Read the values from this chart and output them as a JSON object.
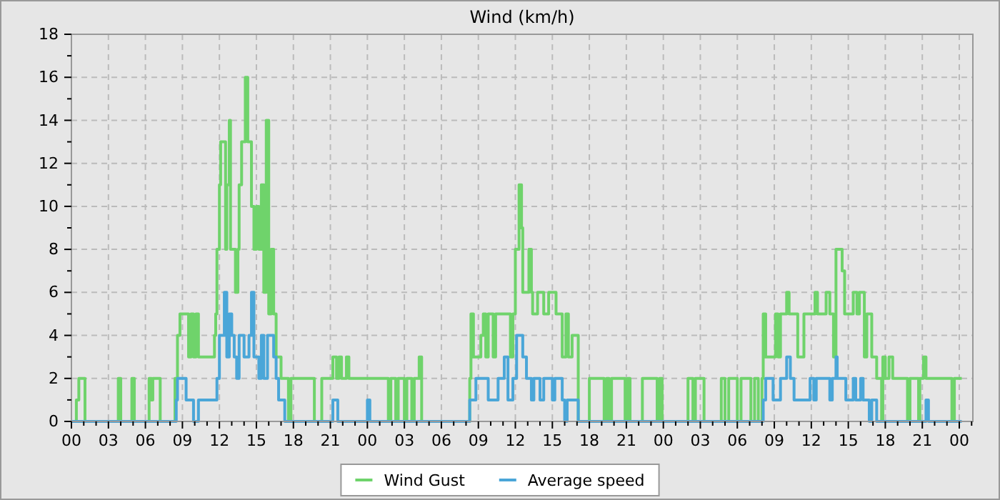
{
  "chart_data": {
    "type": "step",
    "title": "Wind (km/h)",
    "xlim": [
      0,
      73.1
    ],
    "ylim": [
      0,
      18
    ],
    "xticks": [
      {
        "value": 0,
        "label": "00"
      },
      {
        "value": 1,
        "label": null
      },
      {
        "value": 2,
        "label": null
      },
      {
        "value": 3,
        "label": "03"
      },
      {
        "value": 4,
        "label": null
      },
      {
        "value": 5,
        "label": null
      },
      {
        "value": 6,
        "label": "06"
      },
      {
        "value": 7,
        "label": null
      },
      {
        "value": 8,
        "label": null
      },
      {
        "value": 9,
        "label": "09"
      },
      {
        "value": 10,
        "label": null
      },
      {
        "value": 11,
        "label": null
      },
      {
        "value": 12,
        "label": "12"
      },
      {
        "value": 13,
        "label": null
      },
      {
        "value": 14,
        "label": null
      },
      {
        "value": 15,
        "label": "15"
      },
      {
        "value": 16,
        "label": null
      },
      {
        "value": 17,
        "label": null
      },
      {
        "value": 18,
        "label": "18"
      },
      {
        "value": 19,
        "label": null
      },
      {
        "value": 20,
        "label": null
      },
      {
        "value": 21,
        "label": "21"
      },
      {
        "value": 22,
        "label": null
      },
      {
        "value": 23,
        "label": null
      },
      {
        "value": 24,
        "label": "00"
      },
      {
        "value": 25,
        "label": null
      },
      {
        "value": 26,
        "label": null
      },
      {
        "value": 27,
        "label": "03"
      },
      {
        "value": 28,
        "label": null
      },
      {
        "value": 29,
        "label": null
      },
      {
        "value": 30,
        "label": "06"
      },
      {
        "value": 31,
        "label": null
      },
      {
        "value": 32,
        "label": null
      },
      {
        "value": 33,
        "label": "09"
      },
      {
        "value": 34,
        "label": null
      },
      {
        "value": 35,
        "label": null
      },
      {
        "value": 36,
        "label": "12"
      },
      {
        "value": 37,
        "label": null
      },
      {
        "value": 38,
        "label": null
      },
      {
        "value": 39,
        "label": "15"
      },
      {
        "value": 40,
        "label": null
      },
      {
        "value": 41,
        "label": null
      },
      {
        "value": 42,
        "label": "18"
      },
      {
        "value": 43,
        "label": null
      },
      {
        "value": 44,
        "label": null
      },
      {
        "value": 45,
        "label": "21"
      },
      {
        "value": 46,
        "label": null
      },
      {
        "value": 47,
        "label": null
      },
      {
        "value": 48,
        "label": "00"
      },
      {
        "value": 49,
        "label": null
      },
      {
        "value": 50,
        "label": null
      },
      {
        "value": 51,
        "label": "03"
      },
      {
        "value": 52,
        "label": null
      },
      {
        "value": 53,
        "label": null
      },
      {
        "value": 54,
        "label": "06"
      },
      {
        "value": 55,
        "label": null
      },
      {
        "value": 56,
        "label": null
      },
      {
        "value": 57,
        "label": "09"
      },
      {
        "value": 58,
        "label": null
      },
      {
        "value": 59,
        "label": null
      },
      {
        "value": 60,
        "label": "12"
      },
      {
        "value": 61,
        "label": null
      },
      {
        "value": 62,
        "label": null
      },
      {
        "value": 63,
        "label": "15"
      },
      {
        "value": 64,
        "label": null
      },
      {
        "value": 65,
        "label": null
      },
      {
        "value": 66,
        "label": "18"
      },
      {
        "value": 67,
        "label": null
      },
      {
        "value": 68,
        "label": null
      },
      {
        "value": 69,
        "label": "21"
      },
      {
        "value": 70,
        "label": null
      },
      {
        "value": 71,
        "label": null
      },
      {
        "value": 72,
        "label": "00"
      },
      {
        "value": 73,
        "label": null
      }
    ],
    "yticks": [
      0,
      {
        "value": 1,
        "label": null
      },
      2,
      {
        "value": 3,
        "label": null
      },
      4,
      {
        "value": 5,
        "label": null
      },
      6,
      {
        "value": 7,
        "label": null
      },
      8,
      {
        "value": 9,
        "label": null
      },
      10,
      {
        "value": 11,
        "label": null
      },
      12,
      {
        "value": 13,
        "label": null
      },
      14,
      {
        "value": 15,
        "label": null
      },
      16,
      {
        "value": 17,
        "label": null
      },
      18
    ],
    "grid": true,
    "legend": "bottom",
    "series": [
      {
        "name": "Wind Gust",
        "color": "#6fd36b",
        "x": [
          0,
          0.4,
          0.6,
          1.1,
          3.8,
          4.0,
          4.9,
          5.1,
          6.3,
          6.5,
          6.6,
          7.2,
          8.4,
          8.6,
          8.8,
          9.5,
          9.7,
          9.9,
          10.1,
          10.3,
          11.6,
          11.7,
          11.8,
          12.0,
          12.1,
          12.5,
          12.6,
          12.8,
          12.9,
          13.3,
          13.5,
          13.6,
          13.8,
          14.1,
          14.3,
          14.6,
          14.8,
          15.0,
          15.2,
          15.4,
          15.6,
          15.8,
          16.0,
          16.2,
          16.4,
          16.6,
          17.0,
          17.6,
          17.8,
          19.7,
          20.3,
          21.2,
          21.5,
          21.7,
          21.9,
          22.3,
          22.5,
          25.7,
          25.9,
          26.3,
          26.5,
          27.0,
          27.2,
          27.6,
          27.8,
          28.2,
          28.4,
          32.3,
          32.4,
          32.6,
          33.2,
          33.4,
          33.6,
          33.8,
          34.2,
          34.4,
          35.6,
          35.8,
          36.0,
          36.3,
          36.5,
          36.6,
          37.1,
          37.3,
          37.4,
          37.8,
          38.3,
          38.7,
          39.3,
          39.8,
          40.1,
          40.3,
          40.6,
          41.1,
          42.0,
          43.2,
          43.4,
          43.6,
          43.8,
          44.9,
          45.1,
          45.3,
          46.3,
          47.5,
          47.7,
          47.9,
          50.0,
          50.4,
          50.6,
          51.3,
          52.7,
          53.0,
          53.3,
          54.0,
          54.3,
          55.1,
          55.4,
          55.7,
          56.0,
          56.1,
          56.3,
          57.1,
          57.3,
          57.5,
          58.0,
          58.2,
          58.9,
          59.4,
          60.3,
          60.5,
          61.2,
          61.5,
          61.8,
          62.0,
          62.5,
          62.7,
          63.4,
          63.7,
          63.9,
          64.3,
          64.5,
          64.9,
          65.3,
          65.7,
          65.8,
          66.0,
          66.3,
          66.6,
          67.8,
          68.0,
          68.7,
          68.8,
          69.1,
          69.3,
          71.4,
          71.6,
          72.2
        ],
        "values": [
          0,
          1,
          2,
          0,
          2,
          0,
          2,
          0,
          2,
          1,
          2,
          0,
          2,
          4,
          5,
          3,
          5,
          3,
          5,
          3,
          4,
          5,
          8,
          11,
          13,
          8,
          11,
          14,
          8,
          6,
          8,
          11,
          13,
          16,
          13,
          10,
          8,
          10,
          8,
          11,
          6,
          14,
          5,
          8,
          5,
          3,
          2,
          0,
          2,
          0,
          2,
          3,
          2,
          3,
          2,
          3,
          2,
          0,
          2,
          0,
          2,
          0,
          2,
          0,
          2,
          3,
          0,
          2,
          5,
          3,
          4,
          5,
          3,
          5,
          3,
          5,
          3,
          5,
          8,
          11,
          9,
          6,
          8,
          6,
          5,
          6,
          5,
          6,
          5,
          3,
          5,
          3,
          4,
          0,
          2,
          0,
          2,
          0,
          2,
          0,
          2,
          0,
          2,
          0,
          2,
          0,
          2,
          0,
          2,
          0,
          2,
          0,
          2,
          0,
          2,
          0,
          2,
          0,
          2,
          5,
          3,
          5,
          3,
          5,
          6,
          5,
          3,
          5,
          6,
          5,
          6,
          5,
          3,
          8,
          7,
          5,
          6,
          5,
          6,
          3,
          5,
          3,
          2,
          0,
          3,
          2,
          3,
          2,
          0,
          2,
          0,
          2,
          3,
          2,
          0,
          2,
          2
        ]
      },
      {
        "name": "Average speed",
        "color": "#4aa6d8",
        "x": [
          0,
          8.5,
          8.6,
          9.3,
          9.9,
          10.3,
          11.8,
          12.0,
          12.4,
          12.6,
          12.8,
          13.0,
          13.2,
          13.4,
          13.6,
          14.0,
          14.4,
          14.6,
          14.8,
          15.2,
          15.4,
          15.6,
          15.9,
          16.4,
          16.6,
          16.8,
          17.3,
          21.2,
          21.6,
          24.0,
          24.2,
          32.3,
          32.8,
          33.8,
          34.6,
          35.1,
          35.4,
          35.8,
          36.1,
          36.6,
          36.9,
          37.3,
          37.5,
          38.0,
          38.3,
          39.0,
          39.2,
          39.8,
          40.0,
          40.2,
          41.1,
          56.1,
          56.3,
          56.9,
          57.5,
          58.0,
          58.3,
          58.6,
          59.9,
          60.2,
          60.4,
          61.5,
          61.7,
          62.0,
          62.1,
          62.8,
          63.4,
          63.6,
          64.0,
          64.2,
          64.7,
          64.9,
          65.3,
          69.3,
          69.5,
          72.2
        ],
        "values": [
          0,
          1,
          2,
          1,
          0,
          1,
          2,
          4,
          6,
          3,
          5,
          4,
          3,
          2,
          4,
          3,
          4,
          6,
          3,
          2,
          4,
          2,
          4,
          3,
          2,
          1,
          0,
          1,
          0,
          1,
          0,
          1,
          2,
          1,
          2,
          3,
          1,
          2,
          4,
          3,
          2,
          1,
          2,
          1,
          2,
          1,
          2,
          1,
          0,
          1,
          0,
          1,
          2,
          1,
          2,
          3,
          2,
          1,
          2,
          1,
          2,
          1,
          2,
          3,
          2,
          1,
          2,
          1,
          2,
          1,
          0,
          1,
          0,
          1,
          0,
          0
        ]
      }
    ]
  }
}
